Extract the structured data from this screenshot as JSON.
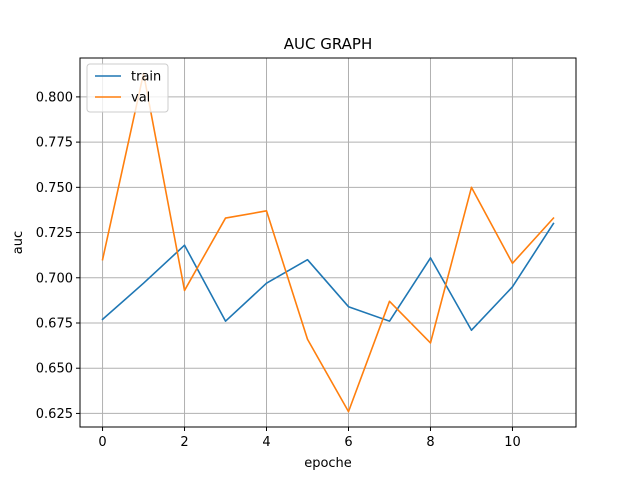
{
  "chart_data": {
    "type": "line",
    "title": "AUC GRAPH",
    "xlabel": "epoche",
    "ylabel": "auc",
    "xlim": [
      -0.55,
      11.55
    ],
    "ylim": [
      0.6175,
      0.8215
    ],
    "xticks": [
      0,
      2,
      4,
      6,
      8,
      10
    ],
    "xtick_labels": [
      "0",
      "2",
      "4",
      "6",
      "8",
      "10"
    ],
    "yticks": [
      0.625,
      0.65,
      0.675,
      0.7,
      0.725,
      0.75,
      0.775,
      0.8
    ],
    "ytick_labels": [
      "0.625",
      "0.650",
      "0.675",
      "0.700",
      "0.725",
      "0.750",
      "0.775",
      "0.800"
    ],
    "grid": true,
    "legend_position": "top-left",
    "x": [
      0,
      1,
      2,
      3,
      4,
      5,
      6,
      7,
      8,
      9,
      10,
      11
    ],
    "series": [
      {
        "name": "train",
        "color": "#1f77b4",
        "values": [
          0.677,
          0.697,
          0.718,
          0.676,
          0.697,
          0.71,
          0.684,
          0.676,
          0.711,
          0.671,
          0.695,
          0.73
        ]
      },
      {
        "name": "val",
        "color": "#ff7f0e",
        "values": [
          0.71,
          0.813,
          0.693,
          0.733,
          0.737,
          0.666,
          0.626,
          0.687,
          0.664,
          0.75,
          0.708,
          0.733
        ]
      }
    ]
  }
}
